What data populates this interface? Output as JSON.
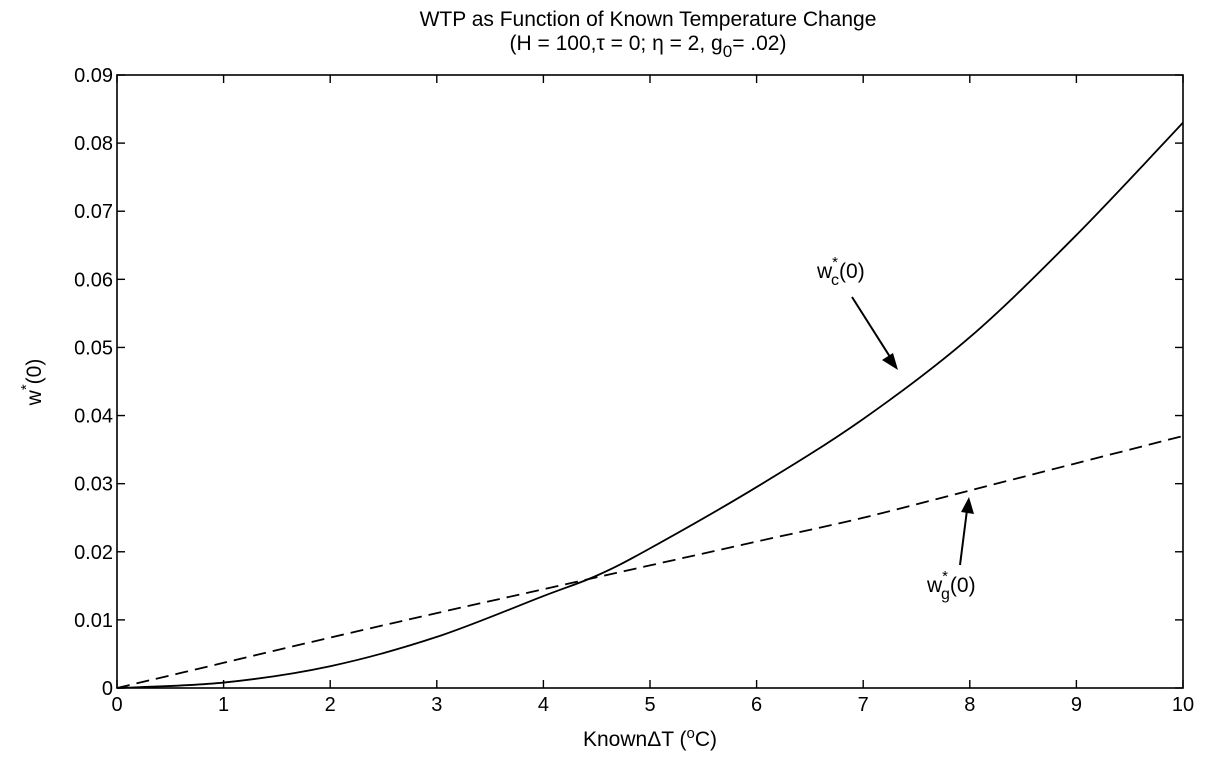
{
  "chart_data": {
    "type": "line",
    "title": "WTP as Function of Known Temperature Change",
    "subtitle": {
      "prefix": "(H = 100,",
      "tau_sym": "τ",
      "tau_val": " = 0;",
      "eta_sym": " η",
      "eta_val": " = 2, g",
      "g_sub": "0",
      "g_val": "= .02)"
    },
    "xlabel": {
      "prefix": "Known",
      "delta": "ΔT (",
      "deg": "o",
      "suffix": "C)"
    },
    "ylabel": {
      "main": "w",
      "star": "*",
      "arg": "(0)"
    },
    "xlim": [
      0,
      10
    ],
    "ylim": [
      0,
      0.09
    ],
    "xticks": [
      0,
      1,
      2,
      3,
      4,
      5,
      6,
      7,
      8,
      9,
      10
    ],
    "yticks": [
      0,
      0.01,
      0.02,
      0.03,
      0.04,
      0.05,
      0.06,
      0.07,
      0.08,
      0.09
    ],
    "xtick_labels": [
      "0",
      "1",
      "2",
      "3",
      "4",
      "5",
      "6",
      "7",
      "8",
      "9",
      "10"
    ],
    "ytick_labels": [
      "0",
      "0.01",
      "0.02",
      "0.03",
      "0.04",
      "0.05",
      "0.06",
      "0.07",
      "0.08",
      "0.09"
    ],
    "grid": false,
    "legend": "none",
    "series": [
      {
        "id": "wc",
        "style": "solid",
        "x": [
          0,
          1,
          2,
          3,
          4,
          4.5,
          5,
          6,
          7,
          8,
          9,
          10
        ],
        "y": [
          0,
          0.0008,
          0.0032,
          0.0075,
          0.0135,
          0.0165,
          0.0205,
          0.0295,
          0.0395,
          0.0515,
          0.0665,
          0.083
        ]
      },
      {
        "id": "wg",
        "style": "dashed",
        "x": [
          0,
          1,
          2,
          3,
          4,
          5,
          6,
          7,
          8,
          9,
          10
        ],
        "y": [
          0,
          0.0037,
          0.0074,
          0.011,
          0.0145,
          0.018,
          0.0215,
          0.025,
          0.029,
          0.033,
          0.037
        ]
      }
    ],
    "annotations": [
      {
        "id": "wc",
        "base": "w",
        "sup": "*",
        "sub": "c",
        "arg": "(0)"
      },
      {
        "id": "wg",
        "base": "w",
        "sup": "*",
        "sub": "g",
        "arg": "(0)"
      }
    ]
  }
}
